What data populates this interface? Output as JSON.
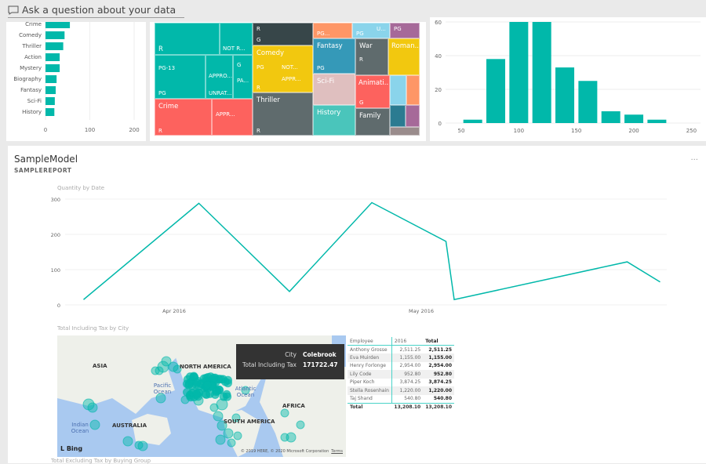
{
  "qa": {
    "placeholder": "Ask a question about your data",
    "icon": "chat-icon"
  },
  "genre_bar": {
    "type": "bar",
    "categories": [
      "Crime",
      "Comedy",
      "Thriller",
      "Action",
      "Mystery",
      "Biography",
      "Fantasy",
      "Sci-Fi",
      "History"
    ],
    "values": [
      55,
      43,
      40,
      32,
      32,
      25,
      23,
      21,
      20
    ],
    "ticks": [
      "0",
      "100",
      "200"
    ],
    "xlim": [
      0,
      200
    ],
    "color": "#01b8aa"
  },
  "treemap": {
    "cells": [
      "R",
      "NOT R...",
      "PG-13",
      "APPRO...",
      "G",
      "PA...",
      "PG",
      "UNRAT...",
      "Crime",
      "APPR...",
      "R",
      "R",
      "G",
      "Comedy",
      "PG",
      "NOT...",
      "APPR...",
      "R",
      "Thriller",
      "R",
      "PG...",
      "PG",
      "U...",
      "PG",
      "Fantasy",
      "PG",
      "War",
      "R",
      "Roman...",
      "Sci-Fi",
      "Animati...",
      "G",
      "History",
      "Family"
    ]
  },
  "histogram": {
    "type": "bar",
    "x": [
      60,
      80,
      100,
      120,
      140,
      160,
      180,
      200,
      220
    ],
    "values": [
      2,
      38,
      60,
      60,
      33,
      25,
      7,
      5,
      2
    ],
    "xticks": [
      "50",
      "100",
      "150",
      "200",
      "250"
    ],
    "yticks": [
      "0",
      "20",
      "40",
      "60"
    ],
    "xlim": [
      45,
      255
    ],
    "ylim": [
      0,
      60
    ]
  },
  "panel": {
    "title": "SampleModel",
    "subtitle": "SAMPLEREPORT",
    "more": "..."
  },
  "chart_data": {
    "type": "line",
    "title": "Quantity by Date",
    "x_days_from_apr1_2016": [
      -11,
      3,
      14,
      24,
      33,
      34,
      55,
      59
    ],
    "values": [
      15,
      288,
      38,
      290,
      180,
      15,
      122,
      65
    ],
    "yticks": [
      "0",
      "100",
      "200",
      "300"
    ],
    "ylim": [
      0,
      300
    ],
    "xtick_labels": [
      "Apr 2016",
      "May 2016"
    ],
    "color": "#01b8aa"
  },
  "map": {
    "title": "Total Including Tax by City",
    "labels": [
      "ASIA",
      "NORTH AMERICA",
      "Pacific Ocean",
      "Atlantic Ocean",
      "AFRICA",
      "Indian Ocean",
      "AUSTRALIA",
      "SOUTH AMERICA"
    ],
    "logo": "Bing",
    "copyright": "© 2019 HERE, © 2020 Microsoft Corporation",
    "terms": "Terms",
    "tooltip": {
      "k1": "City",
      "v1": "Colebrook",
      "k2": "Total Including Tax",
      "v2": "171722.47"
    }
  },
  "table": {
    "headers": [
      "Employee",
      "2016",
      "Total"
    ],
    "rows": [
      [
        "Anthony Grosse",
        "2,511.25",
        "2,511.25"
      ],
      [
        "Eva Muirden",
        "1,155.00",
        "1,155.00"
      ],
      [
        "Henry Forlonge",
        "2,954.00",
        "2,954.00"
      ],
      [
        "Lily Code",
        "952.80",
        "952.80"
      ],
      [
        "Piper Koch",
        "3,874.25",
        "3,874.25"
      ],
      [
        "Stella Rosenhain",
        "1,220.00",
        "1,220.00"
      ],
      [
        "Taj Shand",
        "540.80",
        "540.80"
      ]
    ],
    "total": [
      "Total",
      "13,208.10",
      "13,208.10"
    ]
  },
  "next_title": "Total Excluding Tax by Buying Group"
}
